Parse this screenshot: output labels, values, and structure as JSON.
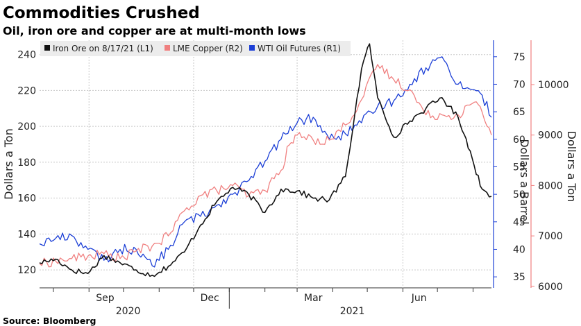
{
  "chart_data": {
    "type": "line",
    "title": "Commodities Crushed",
    "subtitle": "Oil, iron ore and copper are at multi-month lows",
    "source": "Source: Bloomberg",
    "x_tick_labels": [
      "Sep",
      "Dec",
      "Mar",
      "Jun"
    ],
    "x_year_labels": [
      "2020",
      "2021"
    ],
    "x_range": [
      "2020-07-20",
      "2021-08-17"
    ],
    "grid": true,
    "legend_placement": "top-left",
    "axes": {
      "L1": {
        "label": "Dollars a Ton",
        "range": [
          110,
          248
        ],
        "ticks": [
          120,
          140,
          160,
          180,
          200,
          220,
          240
        ],
        "color": "#222222"
      },
      "R1": {
        "label": "Dollars a Barrel",
        "range": [
          33,
          78
        ],
        "ticks": [
          35,
          40,
          45,
          50,
          55,
          60,
          65,
          70,
          75
        ],
        "color": "#1c3fd6"
      },
      "R2": {
        "label": "Dollars a Ton",
        "range": [
          5970,
          10880
        ],
        "ticks": [
          6000,
          7000,
          8000,
          9000,
          10000
        ],
        "color": "#f08080"
      }
    },
    "series": [
      {
        "name": "Iron Ore",
        "legend_label": "Iron Ore   on 8/17/21 (L1)",
        "axis": "L1",
        "color": "#111111",
        "x": [
          "2020-07-20",
          "2020-08-03",
          "2020-08-17",
          "2020-08-31",
          "2020-09-14",
          "2020-09-28",
          "2020-10-12",
          "2020-10-26",
          "2020-11-09",
          "2020-11-23",
          "2020-12-07",
          "2020-12-21",
          "2021-01-04",
          "2021-01-18",
          "2021-02-01",
          "2021-02-15",
          "2021-03-01",
          "2021-03-15",
          "2021-03-29",
          "2021-04-12",
          "2021-04-26",
          "2021-05-03",
          "2021-05-10",
          "2021-05-24",
          "2021-06-07",
          "2021-06-21",
          "2021-07-05",
          "2021-07-19",
          "2021-07-26",
          "2021-08-02",
          "2021-08-09",
          "2021-08-17"
        ],
        "values": [
          124,
          126,
          120,
          118,
          128,
          124,
          120,
          117,
          122,
          130,
          145,
          158,
          166,
          162,
          152,
          165,
          164,
          160,
          159,
          172,
          232,
          246,
          216,
          194,
          203,
          210,
          216,
          205,
          193,
          178,
          165,
          161
        ]
      },
      {
        "name": "LME Copper",
        "legend_label": "LME Copper  (R2)",
        "axis": "R2",
        "color": "#f08080",
        "x": [
          "2020-07-20",
          "2020-08-03",
          "2020-08-17",
          "2020-08-31",
          "2020-09-14",
          "2020-09-28",
          "2020-10-12",
          "2020-10-26",
          "2020-11-09",
          "2020-11-23",
          "2020-12-07",
          "2020-12-21",
          "2021-01-04",
          "2021-01-18",
          "2021-02-01",
          "2021-02-15",
          "2021-02-22",
          "2021-03-01",
          "2021-03-15",
          "2021-03-29",
          "2021-04-12",
          "2021-04-26",
          "2021-05-10",
          "2021-05-24",
          "2021-06-07",
          "2021-06-21",
          "2021-07-05",
          "2021-07-19",
          "2021-08-02",
          "2021-08-09",
          "2021-08-17"
        ],
        "values": [
          6450,
          6500,
          6550,
          6600,
          6650,
          6550,
          6700,
          6800,
          7000,
          7500,
          7800,
          7900,
          8000,
          7800,
          7900,
          8300,
          8800,
          9000,
          8900,
          8900,
          9200,
          9700,
          10400,
          10100,
          9900,
          9400,
          9400,
          9400,
          9650,
          9450,
          9000
        ]
      },
      {
        "name": "WTI Oil Futures",
        "legend_label": "WTI Oil Futures  (R1)",
        "axis": "R1",
        "color": "#1c3fd6",
        "x": [
          "2020-07-20",
          "2020-08-03",
          "2020-08-17",
          "2020-08-31",
          "2020-09-14",
          "2020-09-28",
          "2020-10-12",
          "2020-10-26",
          "2020-11-09",
          "2020-11-23",
          "2020-12-07",
          "2020-12-21",
          "2021-01-04",
          "2021-01-18",
          "2021-02-01",
          "2021-02-15",
          "2021-03-01",
          "2021-03-15",
          "2021-03-29",
          "2021-04-12",
          "2021-04-26",
          "2021-05-10",
          "2021-05-24",
          "2021-06-07",
          "2021-06-21",
          "2021-07-05",
          "2021-07-19",
          "2021-08-02",
          "2021-08-09",
          "2021-08-17"
        ],
        "values": [
          41,
          42,
          42.5,
          40,
          38,
          40,
          40,
          37,
          40,
          45,
          46,
          48,
          50,
          52.5,
          56,
          60,
          63,
          64,
          60,
          61,
          63,
          66,
          67,
          70,
          73,
          75,
          70,
          69,
          68,
          64
        ]
      }
    ]
  }
}
